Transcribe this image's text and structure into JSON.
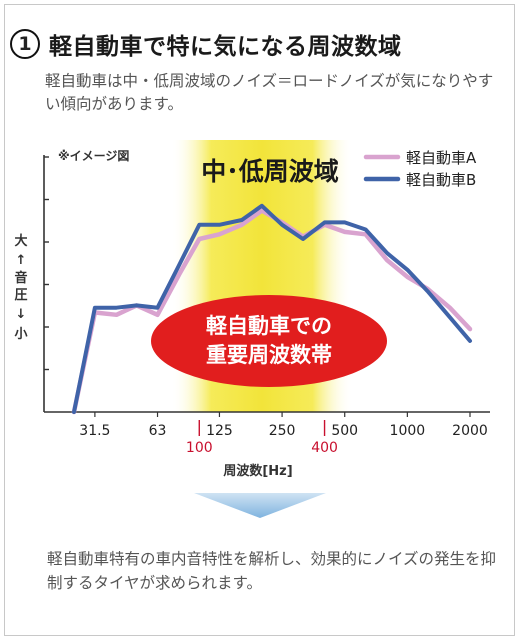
{
  "heading": {
    "number": "1",
    "title": "軽自動車で特に気になる周波数域"
  },
  "intro_text": "軽自動車は中・低周波域のノイズ＝ロードノイズが気になりやすい傾向があります。",
  "footer_text": "軽自動車特有の車内音特性を解析し、効果的にノイズの発生を抑制するタイヤが求められます。",
  "colors": {
    "series_a": "#d9a3cf",
    "series_b": "#3f63a8",
    "highlight_band": "#f5ea50",
    "callout": "#e11e1e",
    "tick_red": "#c8102e",
    "arrow": "#a9cdea"
  },
  "chart_data": {
    "type": "line",
    "image_note": "※イメージ図",
    "band_label": "中･低周波域",
    "callout": [
      "軽自動車での",
      "重要周波数帯"
    ],
    "ylabel": [
      "大",
      "↑",
      "音圧",
      "↓",
      "小"
    ],
    "xlabel": "周波数[Hz]",
    "x_ticks": [
      "31.5",
      "63",
      "125",
      "250",
      "500",
      "1000",
      "2000"
    ],
    "x_ticks_red": [
      "100",
      "400"
    ],
    "band_range": [
      100,
      400
    ],
    "xlim": [
      20,
      2000
    ],
    "ylim": [
      0,
      100
    ],
    "legend_position": "top-right",
    "x": [
      25,
      31.5,
      40,
      50,
      63,
      80,
      100,
      125,
      160,
      200,
      250,
      315,
      400,
      500,
      630,
      800,
      1000,
      1250,
      1600,
      2000
    ],
    "series": [
      {
        "name": "軽自動車A",
        "values": [
          0,
          42,
          41,
          45,
          41,
          58,
          73,
          75,
          79,
          85,
          80,
          74,
          79,
          76,
          75,
          64,
          57,
          52,
          44,
          35
        ]
      },
      {
        "name": "軽自動車B",
        "values": [
          0,
          44,
          44,
          45,
          44,
          62,
          79,
          79,
          81,
          87,
          79,
          73,
          80,
          80,
          77,
          67,
          60,
          51,
          40,
          30
        ]
      }
    ]
  }
}
